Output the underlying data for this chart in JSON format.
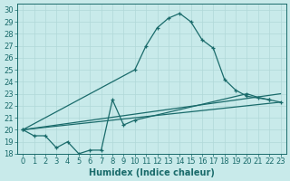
{
  "xlabel": "Humidex (Indice chaleur)",
  "xlim": [
    -0.5,
    23.5
  ],
  "ylim": [
    18,
    30.5
  ],
  "yticks": [
    18,
    19,
    20,
    21,
    22,
    23,
    24,
    25,
    26,
    27,
    28,
    29,
    30
  ],
  "xticks": [
    0,
    1,
    2,
    3,
    4,
    5,
    6,
    7,
    8,
    9,
    10,
    11,
    12,
    13,
    14,
    15,
    16,
    17,
    18,
    19,
    20,
    21,
    22,
    23
  ],
  "bg_color": "#c8eaea",
  "grid_color": "#b0d8d8",
  "line_color": "#1a6b6b",
  "label_fontsize": 7,
  "tick_fontsize": 6,
  "curve_peak_x": [
    0,
    10,
    11,
    12,
    13,
    14,
    15,
    16,
    17,
    18,
    19,
    20,
    22
  ],
  "curve_peak_y": [
    20.0,
    25.0,
    27.0,
    28.5,
    29.3,
    29.7,
    29.0,
    27.5,
    26.8,
    24.2,
    23.3,
    22.8,
    22.5
  ],
  "curve_low_x": [
    0,
    1,
    2,
    3,
    4,
    5,
    6,
    7,
    8,
    9,
    10,
    20,
    21,
    22,
    23
  ],
  "curve_low_y": [
    20.0,
    19.5,
    19.5,
    18.5,
    19.0,
    18.0,
    18.3,
    18.3,
    22.5,
    20.4,
    20.8,
    23.0,
    22.7,
    22.5,
    22.3
  ],
  "line1_x": [
    0,
    23
  ],
  "line1_y": [
    20.0,
    22.3
  ],
  "line2_x": [
    0,
    23
  ],
  "line2_y": [
    20.0,
    23.0
  ]
}
